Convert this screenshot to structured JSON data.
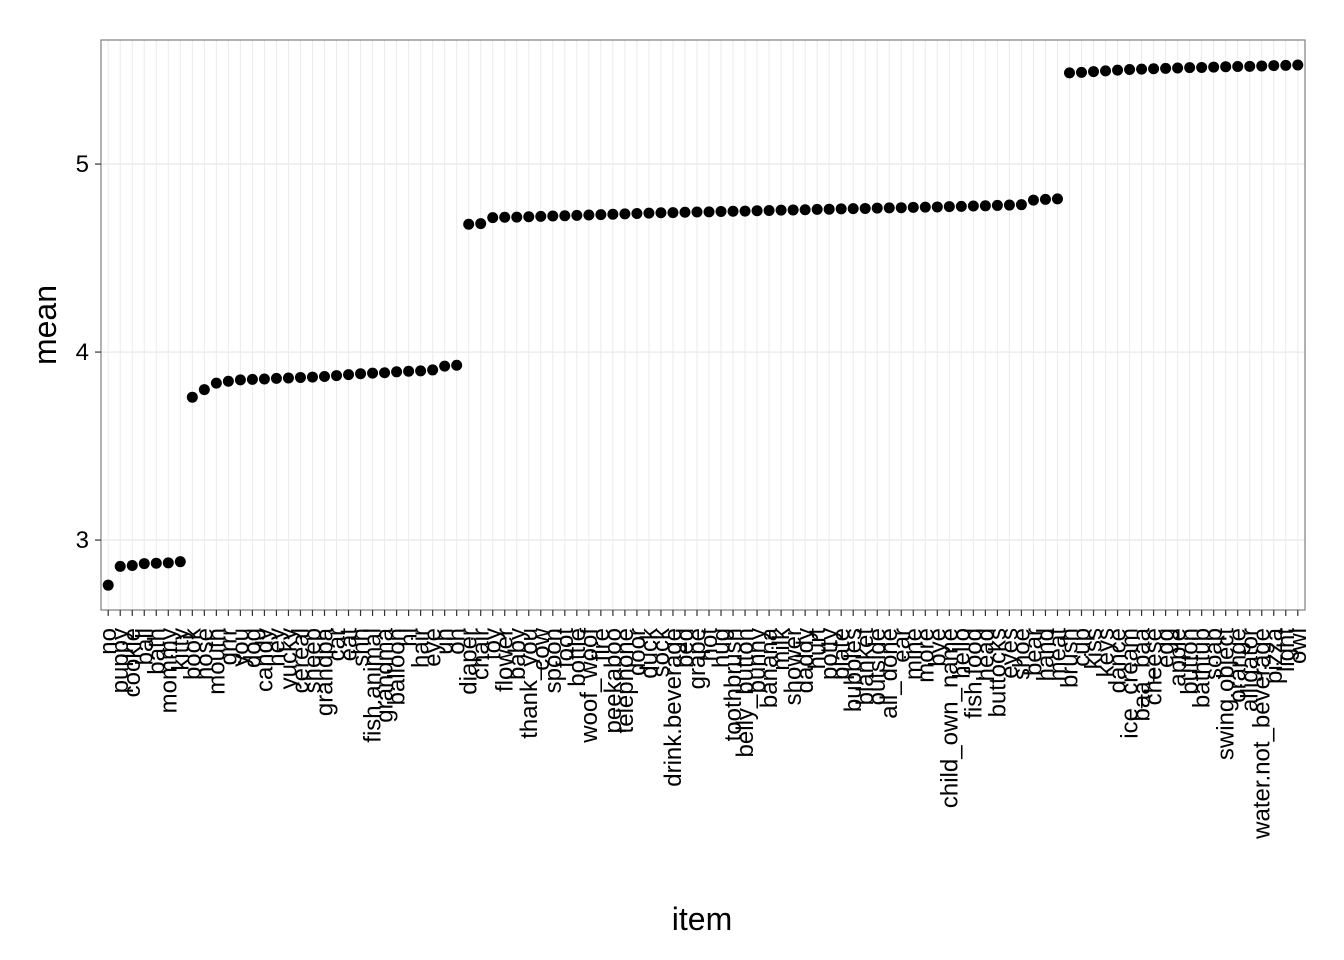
{
  "chart_data": {
    "type": "dot",
    "x_label": "item",
    "y_label": "mean",
    "categories": [
      "no",
      "puppy",
      "cookie",
      "ball",
      "bath",
      "mommy",
      "kitty",
      "book",
      "nose",
      "mouth",
      "grrr",
      "you",
      "dog",
      "candy",
      "hey",
      "yucky",
      "cereal",
      "sheep",
      "grandpa",
      "car",
      "eat",
      "shh",
      "fish.animal",
      "grandma",
      "balloon",
      "hi",
      "hair",
      "eye",
      "uh",
      "oh",
      "diaper",
      "chair",
      "toy",
      "flower",
      "baby",
      "thank_you",
      "cow",
      "spoon",
      "foot",
      "bottle",
      "woof_woof",
      "fire",
      "peekaboo",
      "telephone",
      "door",
      "duck",
      "sock",
      "drink.beverage",
      "bed",
      "grape",
      "hot",
      "hug",
      "toothbrush",
      "belly_button",
      "bunny",
      "banana",
      "milk",
      "shower",
      "daddy",
      "hurt",
      "potty",
      "plate",
      "bubbles",
      "blanket",
      "outside",
      "all_done",
      "ear",
      "mine",
      "more",
      "bye",
      "child_own_name",
      "hello",
      "fish.food",
      "head",
      "buttocks",
      "eyes",
      "shoe",
      "bear",
      "hand",
      "meat",
      "brush",
      "cup",
      "kiss",
      "keys",
      "dance",
      "ice_cream",
      "baa_baa",
      "cheese",
      "egg",
      "apple",
      "button",
      "bathtub",
      "soap",
      "swing.object",
      "orange",
      "alligator",
      "water.not_beverage",
      "pizza",
      "light",
      "owl"
    ],
    "values": [
      2.76,
      2.86,
      2.865,
      2.875,
      2.877,
      2.879,
      2.885,
      3.76,
      3.8,
      3.835,
      3.845,
      3.852,
      3.855,
      3.857,
      3.86,
      3.862,
      3.865,
      3.867,
      3.87,
      3.875,
      3.88,
      3.885,
      3.888,
      3.89,
      3.895,
      3.898,
      3.9,
      3.905,
      3.925,
      3.93,
      4.68,
      4.683,
      4.715,
      4.717,
      4.718,
      4.72,
      4.722,
      4.724,
      4.725,
      4.727,
      4.729,
      4.731,
      4.733,
      4.735,
      4.737,
      4.739,
      4.741,
      4.742,
      4.744,
      4.745,
      4.746,
      4.748,
      4.749,
      4.75,
      4.752,
      4.753,
      4.755,
      4.756,
      4.757,
      4.759,
      4.76,
      4.762,
      4.763,
      4.764,
      4.766,
      4.767,
      4.768,
      4.77,
      4.771,
      4.772,
      4.774,
      4.775,
      4.777,
      4.778,
      4.78,
      4.782,
      4.784,
      4.808,
      4.812,
      4.815,
      5.485,
      5.488,
      5.492,
      5.496,
      5.5,
      5.503,
      5.505,
      5.507,
      5.509,
      5.511,
      5.513,
      5.514,
      5.516,
      5.518,
      5.519,
      5.52,
      5.522,
      5.524,
      5.525,
      5.527
    ],
    "color": "#000000",
    "ylim": [
      2.628,
      5.66
    ],
    "yticks": [
      3,
      4,
      5
    ],
    "grid": true
  }
}
